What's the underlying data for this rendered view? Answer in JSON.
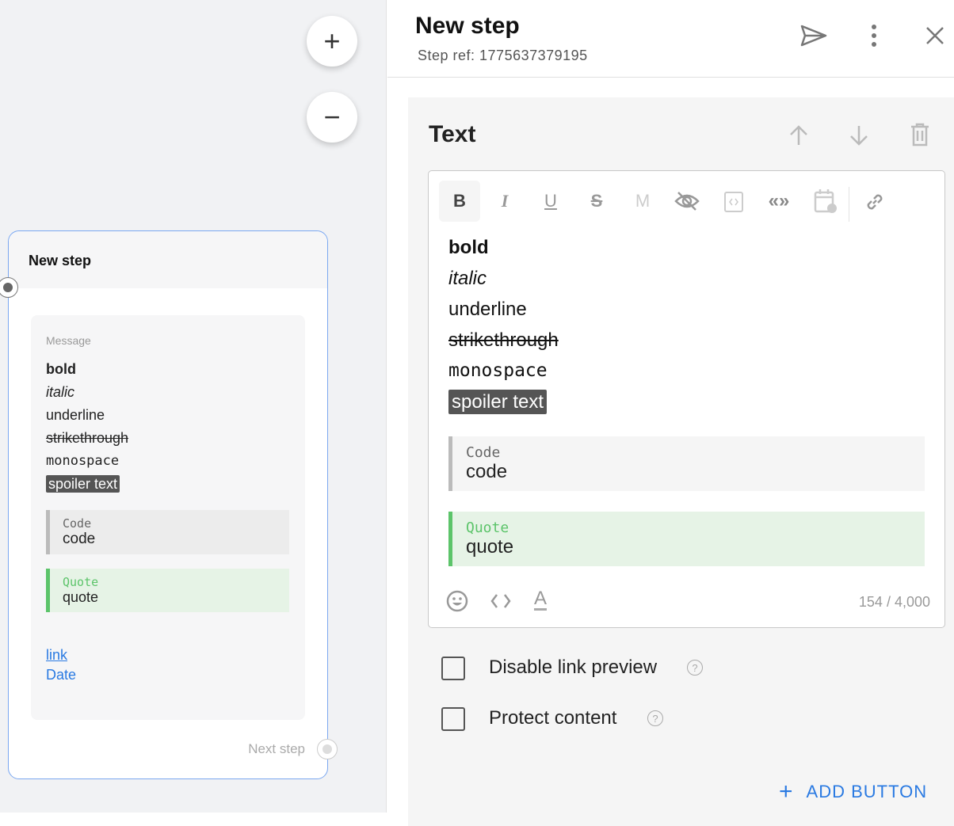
{
  "canvas": {
    "zoom_in": "+",
    "zoom_out": "−"
  },
  "node": {
    "title": "New step",
    "message_label": "Message",
    "lines": {
      "bold": "bold",
      "italic": "italic",
      "underline": "underline",
      "strike": "strikethrough",
      "mono": "monospace",
      "spoiler": "spoiler text"
    },
    "code": {
      "label": "Code",
      "text": "code"
    },
    "quote": {
      "label": "Quote",
      "text": "quote"
    },
    "link": "link",
    "date": "Date",
    "next_step": "Next step"
  },
  "panel": {
    "title": "New step",
    "step_ref": "Step ref: 1775637379195",
    "section": {
      "title": "Text",
      "toolbar": [
        "bold",
        "italic",
        "underline",
        "strikethrough",
        "monospace",
        "spoiler",
        "code",
        "quote",
        "date",
        "link"
      ],
      "content": {
        "bold": "bold",
        "italic": "italic",
        "underline": "underline",
        "strike": "strikethrough",
        "mono": "monospace",
        "spoiler": "spoiler text",
        "code": {
          "label": "Code",
          "text": "code"
        },
        "quote": {
          "label": "Quote",
          "text": "quote"
        }
      },
      "counter": "154 / 4,000",
      "disable_link_preview": "Disable link preview",
      "protect_content": "Protect content",
      "add_button": "ADD BUTTON"
    }
  },
  "colors": {
    "accent": "#2a7ae2",
    "node_border": "#7aa7f0",
    "quote": "#5cc46a"
  }
}
